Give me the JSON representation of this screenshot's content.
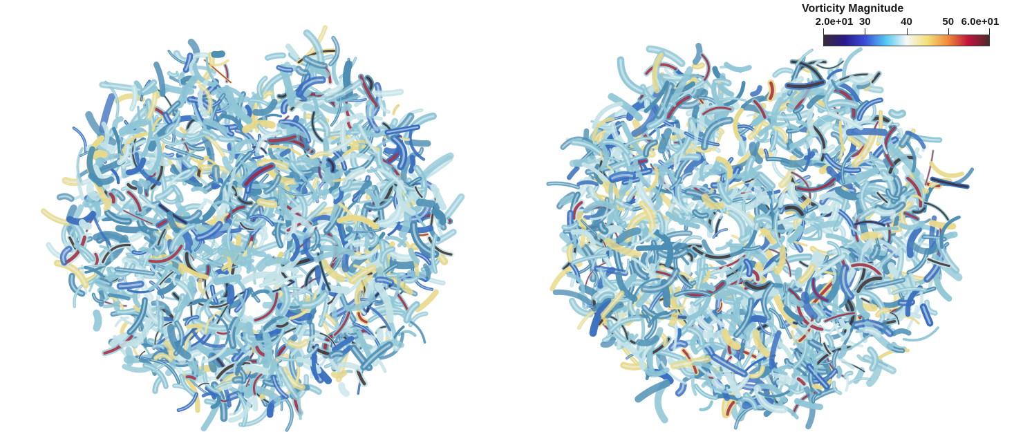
{
  "colorbar": {
    "title": "Vorticity Magnitude",
    "ticks": [
      {
        "label": "2.0e+01",
        "value": 20
      },
      {
        "label": "30",
        "value": 30
      },
      {
        "label": "40",
        "value": 40
      },
      {
        "label": "50",
        "value": 50
      },
      {
        "label": "6.0e+01",
        "value": 60
      }
    ],
    "range": [
      20,
      60
    ],
    "colormap": [
      "#3a2b3a",
      "#2a1a8a",
      "#3a4fd8",
      "#52c8f0",
      "#f4f8f8",
      "#f3e07a",
      "#f08a3a",
      "#c0143c",
      "#4a2b2b"
    ]
  },
  "palette": {
    "tube_main": "#8fc6d6",
    "tube_light": "#c4e3e8",
    "tube_dark": "#4b8db3",
    "tube_blue": "#3a6fbf",
    "accent_yellow": "#e8d98a",
    "accent_red": "#a3253a",
    "accent_dark": "#3b2a2a",
    "background": "#ffffff"
  }
}
